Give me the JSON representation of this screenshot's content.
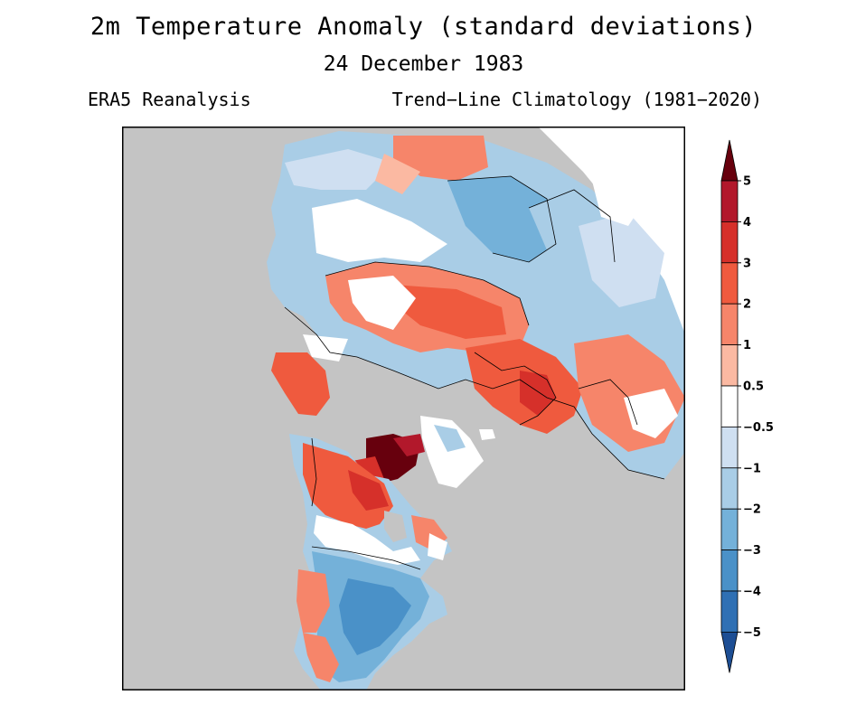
{
  "title": "2m Temperature Anomaly (standard deviations)",
  "date": "24 December 1983",
  "dataset": "ERA5 Reanalysis",
  "climatology": "Trend−Line Climatology (1981−2020)",
  "colorbar": {
    "ticks": [
      "5",
      "4",
      "3",
      "2",
      "1",
      "0.5",
      "−0.5",
      "−1",
      "−2",
      "−3",
      "−4",
      "−5"
    ],
    "colors": {
      "gt5": "#67000d",
      "4_5": "#b2182b",
      "3_4": "#d6302a",
      "2_3": "#ef5a3e",
      "1_2": "#f6856a",
      "0.5_1": "#fbb9a2",
      "neutral": "#ffffff",
      "m1_m0.5": "#cfdff1",
      "m2_m1": "#a9cde6",
      "m3_m2": "#74b1d9",
      "m4_m3": "#4a91c8",
      "m5_m4": "#2f70b4",
      "lt_m5": "#1d4e94"
    }
  },
  "map": {
    "projection": "polar stereographic, North Pole",
    "ocean_color": "#c4c4c4",
    "border_color": "#000000"
  }
}
